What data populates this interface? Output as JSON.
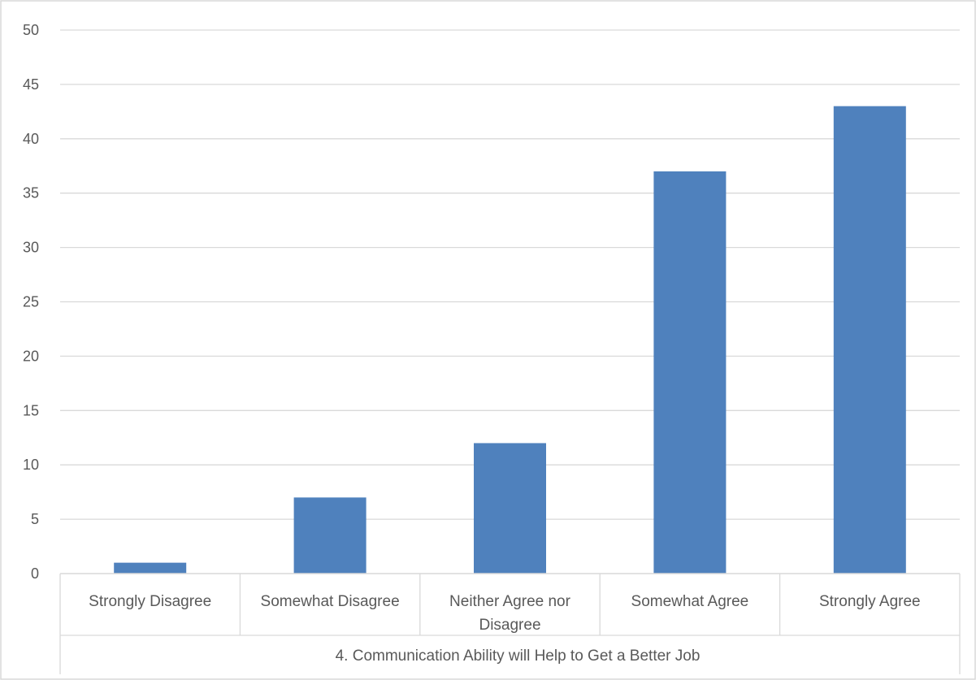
{
  "chart_data": {
    "type": "bar",
    "categories": [
      [
        "Strongly Disagree"
      ],
      [
        "Somewhat Disagree"
      ],
      [
        "Neither Agree nor",
        "Disagree"
      ],
      [
        "Somewhat Agree"
      ],
      [
        "Strongly Agree"
      ]
    ],
    "values": [
      1,
      7,
      12,
      37,
      43
    ],
    "group_label": "4. Communication Ability will Help to Get a Better Job",
    "ylim": [
      0,
      50
    ],
    "y_ticks": [
      0,
      5,
      10,
      15,
      20,
      25,
      30,
      35,
      40,
      45,
      50
    ],
    "grid": true,
    "legend": "none",
    "bar_color": "#4f81bd",
    "grid_color": "#d9d9d9",
    "axis_color": "#d9d9d9",
    "border_color": "#d9d9d9"
  }
}
